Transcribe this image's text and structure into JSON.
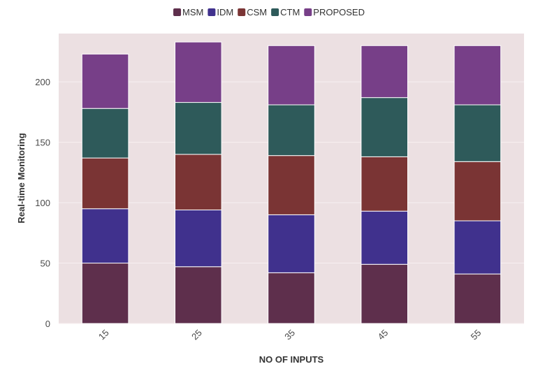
{
  "chart_data": {
    "type": "bar",
    "stacked": true,
    "title": "",
    "xlabel": "NO OF INPUTS",
    "ylabel": "Real-time Monitoring",
    "categories": [
      "15",
      "25",
      "35",
      "45",
      "55"
    ],
    "ylim": [
      0,
      240
    ],
    "yticks": [
      "0",
      "50",
      "100",
      "150",
      "200"
    ],
    "grid": true,
    "legend_position": "top-center",
    "series": [
      {
        "name": "MSM",
        "color": "#5e2f4c",
        "values": [
          50,
          47,
          42,
          49,
          41
        ]
      },
      {
        "name": "IDM",
        "color": "#40318d",
        "values": [
          45,
          47,
          48,
          44,
          44
        ]
      },
      {
        "name": "CSM",
        "color": "#7a3434",
        "values": [
          42,
          46,
          49,
          45,
          49
        ]
      },
      {
        "name": "CTM",
        "color": "#2e5a5a",
        "values": [
          41,
          43,
          42,
          49,
          47
        ]
      },
      {
        "name": "PROPOSED",
        "color": "#773f88",
        "values": [
          45,
          50,
          49,
          43,
          49
        ]
      }
    ],
    "plot_background": "#ece0e2",
    "grid_color": "#f7f0f1"
  }
}
